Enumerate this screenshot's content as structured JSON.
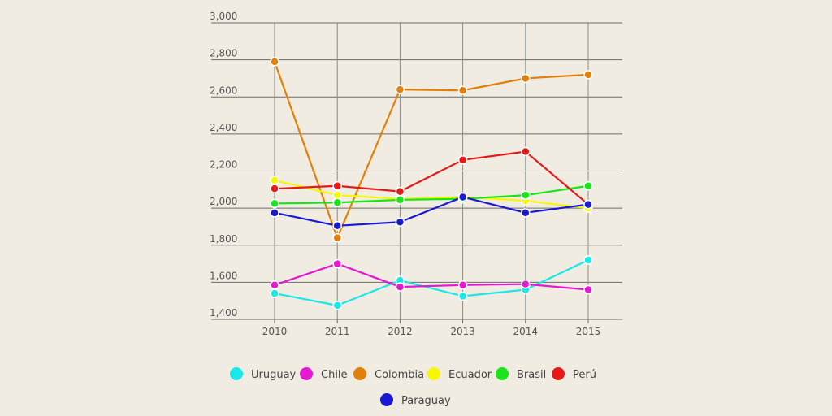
{
  "chart_data": {
    "type": "line",
    "x": [
      "2010",
      "2011",
      "2012",
      "2013",
      "2014",
      "2015"
    ],
    "ylim": [
      1400,
      3000
    ],
    "yticks": [
      "1,400",
      "1,600",
      "1,800",
      "2,000",
      "2,200",
      "2,400",
      "2,600",
      "2,800",
      "3,000"
    ],
    "grid": true,
    "legend_position": "bottom",
    "series": [
      {
        "name": "Uruguay",
        "color": "#19e8e8",
        "values": [
          1540,
          1475,
          1610,
          1525,
          1560,
          1720
        ]
      },
      {
        "name": "Chile",
        "color": "#e619d2",
        "values": [
          1585,
          1700,
          1575,
          1585,
          1590,
          1560
        ]
      },
      {
        "name": "Colombia",
        "color": "#e0800a",
        "values": [
          2790,
          1840,
          2640,
          2635,
          2700,
          2720
        ]
      },
      {
        "name": "Ecuador",
        "color": "#f7f700",
        "values": [
          2150,
          2070,
          2050,
          2060,
          2040,
          2000
        ]
      },
      {
        "name": "Brasil",
        "color": "#19e619",
        "values": [
          2025,
          2030,
          2045,
          2050,
          2070,
          2120
        ]
      },
      {
        "name": "Perú",
        "color": "#e61919",
        "values": [
          2105,
          2120,
          2090,
          2260,
          2305,
          2020
        ]
      },
      {
        "name": "Paraguay",
        "color": "#1919d2",
        "values": [
          1975,
          1905,
          1925,
          2060,
          1975,
          2020
        ]
      }
    ]
  }
}
